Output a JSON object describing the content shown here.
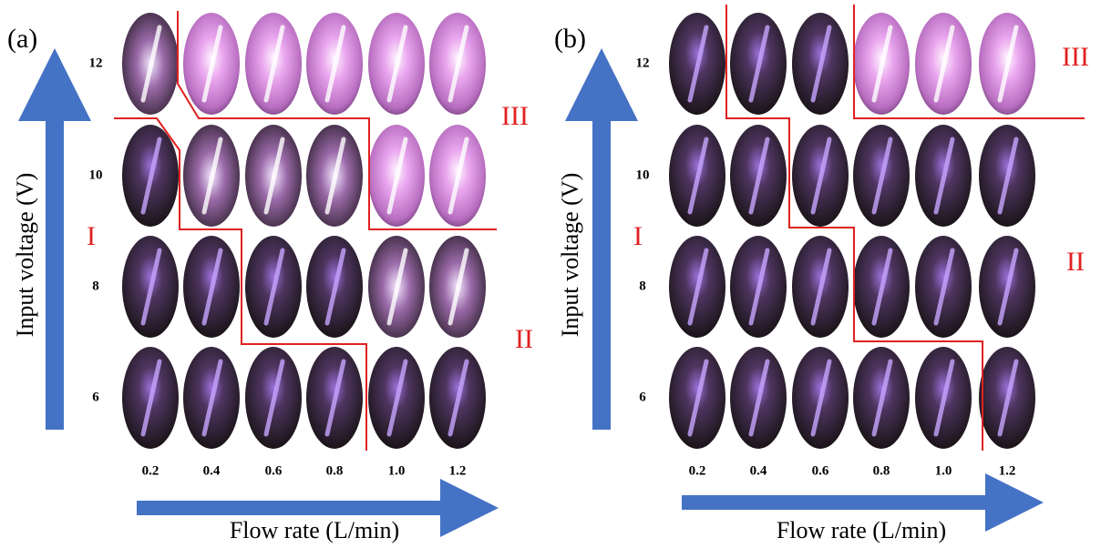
{
  "panels": [
    {
      "label": "(a)",
      "y_axis_title": "Input voltage (V)",
      "x_axis_title": "Flow rate (L/min)",
      "row_labels": [
        "12",
        "10",
        "8",
        "6"
      ],
      "column_labels": [
        "0.2",
        "0.4",
        "0.6",
        "0.8",
        "1.0",
        "1.2"
      ],
      "region_labels": [
        "I",
        "II",
        "III"
      ]
    },
    {
      "label": "(b)",
      "y_axis_title": "Input voltage (V)",
      "x_axis_title": "Flow rate (L/min)",
      "row_labels": [
        "12",
        "10",
        "8",
        "6"
      ],
      "column_labels": [
        "0.2",
        "0.4",
        "0.6",
        "0.8",
        "1.0",
        "1.2"
      ],
      "region_labels": [
        "I",
        "II",
        "III"
      ]
    }
  ]
}
